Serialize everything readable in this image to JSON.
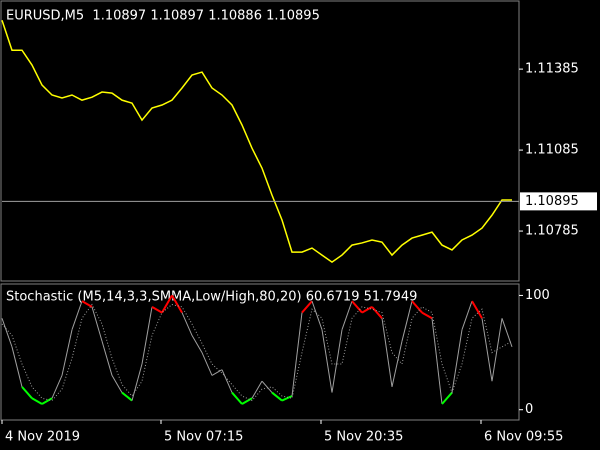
{
  "chart_data": [
    {
      "type": "line",
      "title": "EURUSD,M5  1.10897 1.10897 1.10886 1.10895",
      "color": "#ffff00",
      "xlim": [
        0,
        515
      ],
      "values": [
        1.11566,
        1.11455,
        1.11455,
        1.114,
        1.11326,
        1.11289,
        1.11278,
        1.11289,
        1.1127,
        1.11281,
        1.113,
        1.11296,
        1.1127,
        1.11259,
        1.11196,
        1.11241,
        1.11252,
        1.1127,
        1.11315,
        1.11363,
        1.11374,
        1.11315,
        1.11289,
        1.11252,
        1.11178,
        1.11092,
        1.11018,
        1.10918,
        1.10826,
        1.10707,
        1.10707,
        1.10722,
        1.10696,
        1.1067,
        1.10696,
        1.10733,
        1.10741,
        1.10752,
        1.10744,
        1.10696,
        1.10733,
        1.10759,
        1.1077,
        1.10781,
        1.10733,
        1.10715,
        1.10752,
        1.1077,
        1.10796,
        1.10844,
        1.109,
        1.109
      ],
      "ylim": [
        1.106,
        1.11641
      ],
      "yticks": [
        1.11385,
        1.11085,
        1.10785
      ],
      "current_price": 1.10895
    },
    {
      "type": "stochastic",
      "title": "Stochastic (M5,14,3,3,SMMA,Low/High,80,20) 60.6719 51.7949",
      "levels": [
        80,
        20
      ],
      "xlim": [
        0,
        515
      ],
      "xticks": [
        {
          "value": 0,
          "label": "4 Nov 2019"
        },
        {
          "value": 159,
          "label": "5 Nov 07:15"
        },
        {
          "value": 319,
          "label": "5 Nov 20:35"
        },
        {
          "value": 479,
          "label": "6 Nov 09:55"
        }
      ],
      "ylim": [
        -9,
        110
      ],
      "yticks": [
        100,
        0
      ],
      "series": [
        {
          "color": "#a0a0a0",
          "overbought_color": "#ff0000",
          "oversold_color": "#00ff00",
          "values": [
            80,
            55,
            20,
            10,
            5,
            10,
            30,
            70,
            95,
            90,
            60,
            30,
            15,
            8,
            40,
            90,
            85,
            100,
            85,
            65,
            50,
            30,
            35,
            15,
            5,
            10,
            25,
            15,
            8,
            12,
            85,
            95,
            70,
            15,
            70,
            95,
            85,
            90,
            80,
            20,
            60,
            95,
            85,
            80,
            5,
            15,
            70,
            95,
            80,
            25,
            80,
            55
          ]
        },
        {
          "color": "#a0a0a0",
          "line_style": "dotted",
          "values": [
            75,
            65,
            40,
            20,
            10,
            8,
            18,
            45,
            80,
            92,
            75,
            45,
            22,
            12,
            25,
            65,
            85,
            92,
            90,
            75,
            58,
            40,
            32,
            22,
            12,
            8,
            18,
            20,
            12,
            10,
            50,
            88,
            80,
            40,
            40,
            80,
            90,
            88,
            85,
            50,
            40,
            80,
            90,
            85,
            40,
            15,
            40,
            80,
            88,
            50,
            55,
            60
          ]
        }
      ]
    }
  ]
}
